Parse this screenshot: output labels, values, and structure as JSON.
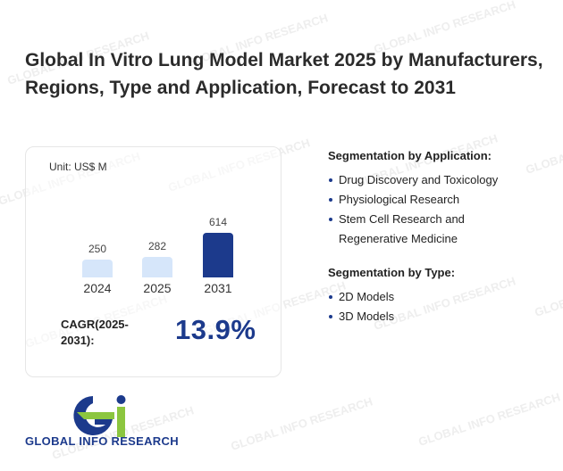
{
  "title": "Global In Vitro Lung Model Market 2025 by Manufacturers, Regions, Type and Application, Forecast to 2031",
  "chart": {
    "unit": "Unit: US$ M",
    "cagr_label": "CAGR(2025-2031):",
    "cagr_value": "13.9%"
  },
  "chart_data": {
    "type": "bar",
    "categories": [
      "2024",
      "2025",
      "2031"
    ],
    "values": [
      250,
      282,
      614
    ],
    "value_labels": [
      "250",
      "282",
      "614"
    ],
    "ylabel": "",
    "xlabel": "",
    "grid": false,
    "colors": [
      "#d6e6fa",
      "#d6e6fa",
      "#1c3a8c"
    ]
  },
  "segments": {
    "application": {
      "heading": "Segmentation by Application:",
      "items": [
        "Drug Discovery and Toxicology",
        "Physiological Research",
        "Stem Cell Research and Regenerative Medicine"
      ]
    },
    "type": {
      "heading": "Segmentation by Type:",
      "items": [
        "2D Models",
        "3D Models"
      ]
    }
  },
  "brand": {
    "name": "GLOBAL INFO RESEARCH",
    "watermark": "GLOBAL INFO RESEARCH",
    "primary_color": "#1c3a8c",
    "accent_color": "#8cc63f"
  }
}
